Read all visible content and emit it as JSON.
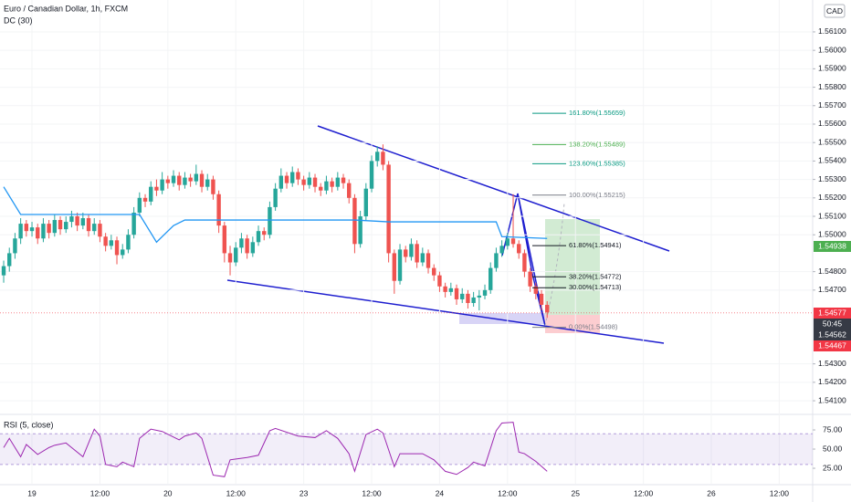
{
  "chart_data": {
    "type": "candlestick",
    "title": "Euro / Canadian Dollar, 1h, FXCM",
    "currency": "CAD",
    "up_color": "#26a69a",
    "down_color": "#ef5350",
    "xlim": [
      -0.65,
      142.9
    ],
    "ylim": [
      1.54036,
      1.56273
    ],
    "yticks": [
      {
        "value": 1.561,
        "label": "1.56100"
      },
      {
        "value": 1.56,
        "label": "1.56000"
      },
      {
        "value": 1.559,
        "label": "1.55900"
      },
      {
        "value": 1.558,
        "label": "1.55800"
      },
      {
        "value": 1.557,
        "label": "1.55700"
      },
      {
        "value": 1.556,
        "label": "1.55600"
      },
      {
        "value": 1.555,
        "label": "1.55500"
      },
      {
        "value": 1.554,
        "label": "1.55400"
      },
      {
        "value": 1.553,
        "label": "1.55300"
      },
      {
        "value": 1.552,
        "label": "1.55200"
      },
      {
        "value": 1.551,
        "label": "1.55100"
      },
      {
        "value": 1.55,
        "label": "1.55000"
      },
      {
        "value": 1.548,
        "label": "1.54800"
      },
      {
        "value": 1.547,
        "label": "1.54700"
      },
      {
        "value": 1.543,
        "label": "1.54300"
      },
      {
        "value": 1.542,
        "label": "1.54200"
      },
      {
        "value": 1.541,
        "label": "1.54100"
      }
    ],
    "xticks": [
      {
        "value": 5,
        "label": "19"
      },
      {
        "value": 17,
        "label": "12:00"
      },
      {
        "value": 29,
        "label": "20"
      },
      {
        "value": 41,
        "label": "12:00"
      },
      {
        "value": 53,
        "label": "23"
      },
      {
        "value": 65,
        "label": "12:00"
      },
      {
        "value": 77,
        "label": "24"
      },
      {
        "value": 89,
        "label": "12:00"
      },
      {
        "value": 101,
        "label": "25"
      },
      {
        "value": 113,
        "label": "12:00"
      },
      {
        "value": 125,
        "label": "26"
      },
      {
        "value": 137,
        "label": "12:00"
      }
    ],
    "candles": [
      [
        1.5478,
        1.5486,
        1.5474,
        1.5483
      ],
      [
        1.5483,
        1.5493,
        1.548,
        1.549
      ],
      [
        1.549,
        1.5501,
        1.5487,
        1.5498
      ],
      [
        1.5498,
        1.5509,
        1.5495,
        1.5506
      ],
      [
        1.5506,
        1.5508,
        1.5499,
        1.5502
      ],
      [
        1.5502,
        1.5507,
        1.5499,
        1.5504
      ],
      [
        1.5504,
        1.5506,
        1.5495,
        1.5498
      ],
      [
        1.5498,
        1.5509,
        1.5496,
        1.5506
      ],
      [
        1.5506,
        1.5508,
        1.5498,
        1.5501
      ],
      [
        1.5501,
        1.5511,
        1.5499,
        1.5508
      ],
      [
        1.5508,
        1.551,
        1.55,
        1.5503
      ],
      [
        1.5503,
        1.551,
        1.5501,
        1.5507
      ],
      [
        1.5507,
        1.5513,
        1.5504,
        1.551
      ],
      [
        1.551,
        1.5512,
        1.5502,
        1.5505
      ],
      [
        1.5505,
        1.5512,
        1.5503,
        1.5509
      ],
      [
        1.5509,
        1.5511,
        1.5499,
        1.5502
      ],
      [
        1.5502,
        1.5509,
        1.55,
        1.5506
      ],
      [
        1.5506,
        1.5508,
        1.5496,
        1.5499
      ],
      [
        1.5499,
        1.5501,
        1.5491,
        1.5494
      ],
      [
        1.5494,
        1.55,
        1.5492,
        1.5497
      ],
      [
        1.5497,
        1.5499,
        1.5484,
        1.5489
      ],
      [
        1.5489,
        1.5495,
        1.5487,
        1.5492
      ],
      [
        1.5492,
        1.5503,
        1.549,
        1.55
      ],
      [
        1.55,
        1.5515,
        1.5498,
        1.5512
      ],
      [
        1.5512,
        1.5523,
        1.551,
        1.552
      ],
      [
        1.552,
        1.5522,
        1.5515,
        1.5518
      ],
      [
        1.5518,
        1.5529,
        1.5516,
        1.5526
      ],
      [
        1.5526,
        1.553,
        1.5521,
        1.5524
      ],
      [
        1.5524,
        1.5534,
        1.5522,
        1.553
      ],
      [
        1.553,
        1.5532,
        1.5525,
        1.5528
      ],
      [
        1.5528,
        1.5535,
        1.5526,
        1.5532
      ],
      [
        1.5532,
        1.5534,
        1.5524,
        1.5527
      ],
      [
        1.5527,
        1.5534,
        1.5525,
        1.5531
      ],
      [
        1.5531,
        1.5533,
        1.5526,
        1.5529
      ],
      [
        1.5529,
        1.5538,
        1.5527,
        1.5533
      ],
      [
        1.5533,
        1.5535,
        1.5523,
        1.5526
      ],
      [
        1.5526,
        1.5533,
        1.5524,
        1.553
      ],
      [
        1.553,
        1.5532,
        1.5519,
        1.5522
      ],
      [
        1.5522,
        1.5524,
        1.5501,
        1.5505
      ],
      [
        1.5505,
        1.5507,
        1.5485,
        1.549
      ],
      [
        1.549,
        1.5494,
        1.5478,
        1.5485
      ],
      [
        1.5485,
        1.5496,
        1.5483,
        1.5493
      ],
      [
        1.5493,
        1.5501,
        1.549,
        1.5498
      ],
      [
        1.5498,
        1.55,
        1.5487,
        1.549
      ],
      [
        1.549,
        1.5499,
        1.5488,
        1.5496
      ],
      [
        1.5496,
        1.5505,
        1.5494,
        1.5502
      ],
      [
        1.5502,
        1.5504,
        1.5497,
        1.55
      ],
      [
        1.55,
        1.5518,
        1.5498,
        1.5515
      ],
      [
        1.5515,
        1.5528,
        1.5513,
        1.5525
      ],
      [
        1.5525,
        1.5536,
        1.5523,
        1.5532
      ],
      [
        1.5532,
        1.5534,
        1.5525,
        1.5528
      ],
      [
        1.5528,
        1.5537,
        1.5526,
        1.5534
      ],
      [
        1.5534,
        1.5536,
        1.5527,
        1.553
      ],
      [
        1.553,
        1.5532,
        1.5524,
        1.5527
      ],
      [
        1.5527,
        1.5534,
        1.5525,
        1.5531
      ],
      [
        1.5531,
        1.5533,
        1.5523,
        1.5526
      ],
      [
        1.5526,
        1.5528,
        1.5521,
        1.5524
      ],
      [
        1.5524,
        1.5532,
        1.5522,
        1.5529
      ],
      [
        1.5529,
        1.5531,
        1.5523,
        1.5526
      ],
      [
        1.5526,
        1.5534,
        1.5524,
        1.5531
      ],
      [
        1.5531,
        1.5533,
        1.5525,
        1.5528
      ],
      [
        1.5528,
        1.553,
        1.5517,
        1.552
      ],
      [
        1.552,
        1.5522,
        1.549,
        1.5495
      ],
      [
        1.5495,
        1.5513,
        1.5493,
        1.551
      ],
      [
        1.551,
        1.5528,
        1.5508,
        1.5525
      ],
      [
        1.5525,
        1.5543,
        1.5523,
        1.554
      ],
      [
        1.554,
        1.5548,
        1.5537,
        1.5545
      ],
      [
        1.5545,
        1.5549,
        1.5535,
        1.5538
      ],
      [
        1.5538,
        1.554,
        1.5485,
        1.549
      ],
      [
        1.549,
        1.5492,
        1.5468,
        1.5475
      ],
      [
        1.5475,
        1.5495,
        1.5473,
        1.5492
      ],
      [
        1.5492,
        1.5494,
        1.5485,
        1.5488
      ],
      [
        1.5488,
        1.5498,
        1.5486,
        1.5495
      ],
      [
        1.5495,
        1.5497,
        1.5482,
        1.5485
      ],
      [
        1.5485,
        1.5493,
        1.5483,
        1.549
      ],
      [
        1.549,
        1.5492,
        1.5479,
        1.5482
      ],
      [
        1.5482,
        1.5484,
        1.5475,
        1.5478
      ],
      [
        1.5478,
        1.548,
        1.5469,
        1.5472
      ],
      [
        1.5472,
        1.5474,
        1.5466,
        1.5469
      ],
      [
        1.5469,
        1.5474,
        1.5467,
        1.5471
      ],
      [
        1.5471,
        1.5473,
        1.5462,
        1.5465
      ],
      [
        1.5465,
        1.5471,
        1.5463,
        1.5468
      ],
      [
        1.5468,
        1.547,
        1.546,
        1.5463
      ],
      [
        1.5463,
        1.5469,
        1.5461,
        1.5466
      ],
      [
        1.5466,
        1.547,
        1.5459,
        1.5467
      ],
      [
        1.5467,
        1.5473,
        1.5465,
        1.547
      ],
      [
        1.547,
        1.5485,
        1.5468,
        1.5482
      ],
      [
        1.5482,
        1.5493,
        1.548,
        1.549
      ],
      [
        1.549,
        1.5497,
        1.5488,
        1.5494
      ],
      [
        1.5494,
        1.5501,
        1.5492,
        1.5498
      ],
      [
        1.5498,
        1.5522,
        1.5493,
        1.5495
      ],
      [
        1.5495,
        1.5497,
        1.5487,
        1.549
      ],
      [
        1.549,
        1.5492,
        1.5477,
        1.548
      ],
      [
        1.548,
        1.5482,
        1.5469,
        1.5472
      ],
      [
        1.5472,
        1.5474,
        1.5465,
        1.5468
      ],
      [
        1.5468,
        1.547,
        1.5459,
        1.5462
      ],
      [
        1.5462,
        1.5464,
        1.5455,
        1.5458
      ]
    ],
    "dc": {
      "name": "DC (30)",
      "color": "#2196f3",
      "x": [
        0,
        3,
        24,
        27,
        30,
        32,
        38,
        62,
        68,
        87,
        88,
        96
      ],
      "values": [
        1.5526,
        1.5511,
        1.5511,
        1.5496,
        1.5505,
        1.5508,
        1.5508,
        1.5508,
        1.5507,
        1.5507,
        1.5499,
        1.5498
      ]
    },
    "rsi": {
      "name": "RSI (5, close)",
      "color": "#9c27b0",
      "ylim": [
        4.8,
        92.9
      ],
      "band": [
        30,
        70
      ],
      "yticks": [
        {
          "value": 75,
          "label": "75.00"
        },
        {
          "value": 50,
          "label": "50.00"
        },
        {
          "value": 25,
          "label": "25.00"
        }
      ],
      "x": [
        0,
        1,
        3,
        4,
        6,
        8,
        9,
        11,
        12,
        14,
        16,
        17,
        18,
        20,
        21,
        23,
        24,
        26,
        28,
        31,
        32,
        34,
        35,
        37,
        39,
        40,
        43,
        45,
        47,
        48,
        52,
        55,
        57,
        59,
        61,
        62,
        64,
        66,
        67,
        69,
        70,
        74,
        76,
        78,
        80,
        82,
        83,
        85,
        87,
        88,
        90,
        91,
        92,
        94,
        96
      ],
      "values": [
        52,
        64,
        40,
        56,
        43,
        52,
        55,
        58,
        52,
        40,
        76,
        67,
        30,
        27,
        33,
        27,
        64,
        76,
        73,
        62,
        67,
        71,
        64,
        16,
        14,
        36,
        39,
        42,
        74,
        77,
        67,
        65,
        74,
        64,
        44,
        21,
        69,
        76,
        71,
        27,
        44,
        44,
        36,
        21,
        17,
        26,
        33,
        28,
        74,
        84,
        85,
        46,
        44,
        34,
        21
      ]
    },
    "fib": [
      {
        "label": "161.80%(1.55659)",
        "value": 1.55659,
        "color": "#089981"
      },
      {
        "label": "138.20%(1.55489)",
        "value": 1.55489,
        "color": "#4caf50"
      },
      {
        "label": "123.60%(1.55385)",
        "value": 1.55385,
        "color": "#089981"
      },
      {
        "label": "100.00%(1.55215)",
        "value": 1.55215,
        "color": "#787b86"
      },
      {
        "label": "61.80%(1.54941)",
        "value": 1.54941,
        "color": "#131722"
      },
      {
        "label": "38.20%(1.54772)",
        "value": 1.54772,
        "color": "#131722"
      },
      {
        "label": "30.00%(1.54713)",
        "value": 1.54713,
        "color": "#131722"
      },
      {
        "label": "0.00%(1.54498)",
        "value": 1.54498,
        "color": "#787b86"
      }
    ],
    "price_tags": [
      {
        "value": 1.54938,
        "label": "1.54938",
        "color": "#4caf50"
      },
      {
        "value": 1.54577,
        "label": "1.54577",
        "color": "#f23645"
      },
      {
        "value": 1.54562,
        "label": "1.54562",
        "color": "#363a45"
      },
      {
        "value": 1.54467,
        "label": "1.54467",
        "color": "#f23645"
      }
    ],
    "countdown": "50:45"
  }
}
